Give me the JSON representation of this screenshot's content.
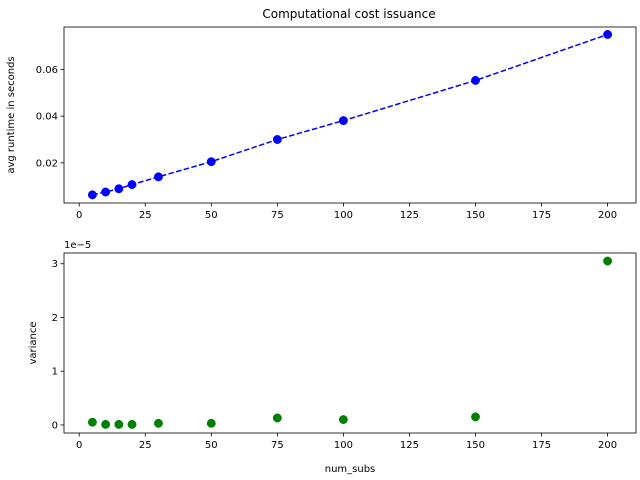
{
  "chart_data": [
    {
      "type": "line",
      "title": "Computational cost issuance",
      "xlabel": "",
      "ylabel": "avg runtime in seconds",
      "xlim": [
        -5.75,
        210.75
      ],
      "ylim": [
        0.0028,
        0.0782
      ],
      "xticks": [
        "0",
        "25",
        "50",
        "75",
        "100",
        "125",
        "150",
        "175",
        "200"
      ],
      "yticks": [
        "0.02",
        "0.04",
        "0.06"
      ],
      "x": [
        5,
        10,
        15,
        20,
        30,
        50,
        75,
        100,
        150,
        200
      ],
      "series": [
        {
          "values": [
            0.0063,
            0.0075,
            0.0089,
            0.0107,
            0.014,
            0.0205,
            0.03,
            0.0381,
            0.0553,
            0.075
          ],
          "color": "#0000ff",
          "line_style": "dashed",
          "marker": "circle"
        }
      ],
      "grid": false
    },
    {
      "type": "scatter",
      "title": "",
      "xlabel": "num_subs",
      "ylabel": "variance",
      "offset_text": "1e−5",
      "xlim": [
        -5.75,
        210.75
      ],
      "ylim": [
        -0.15,
        3.2
      ],
      "xticks": [
        "0",
        "25",
        "50",
        "75",
        "100",
        "125",
        "150",
        "175",
        "200"
      ],
      "yticks": [
        "0",
        "1",
        "2",
        "3"
      ],
      "x": [
        5,
        10,
        15,
        20,
        30,
        50,
        75,
        100,
        150,
        200
      ],
      "series": [
        {
          "values": [
            0.05,
            0.01,
            0.01,
            0.01,
            0.03,
            0.03,
            0.13,
            0.1,
            0.15,
            3.05
          ],
          "color": "#008000",
          "marker": "circle"
        }
      ],
      "grid": false
    }
  ]
}
